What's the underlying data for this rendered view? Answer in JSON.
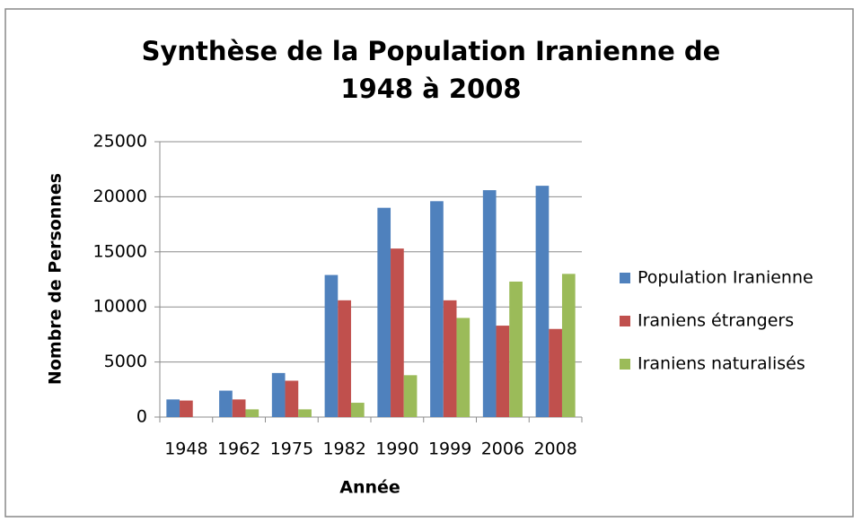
{
  "chart_data": {
    "type": "bar",
    "title": "Synthèse de la Population Iranienne de 1948 à 2008",
    "x_label": "Année",
    "y_label": "Nombre de Personnes",
    "categories": [
      "1948",
      "1962",
      "1975",
      "1982",
      "1990",
      "1999",
      "2006",
      "2008"
    ],
    "series": [
      {
        "name": "Population Iranienne",
        "color": "#4f81bd",
        "values": [
          1600,
          2400,
          4000,
          12900,
          19000,
          19600,
          20600,
          21000
        ]
      },
      {
        "name": "Iraniens étrangers",
        "color": "#c0504d",
        "values": [
          1500,
          1600,
          3300,
          10600,
          15300,
          10600,
          8300,
          8000
        ]
      },
      {
        "name": "Iraniens naturalisés",
        "color": "#9bbb59",
        "values": [
          0,
          700,
          700,
          1300,
          3800,
          9000,
          12300,
          13000
        ]
      }
    ],
    "ylim": [
      0,
      25000
    ],
    "yticks": [
      0,
      5000,
      10000,
      15000,
      20000,
      25000
    ],
    "grid": true,
    "legend": "right"
  }
}
